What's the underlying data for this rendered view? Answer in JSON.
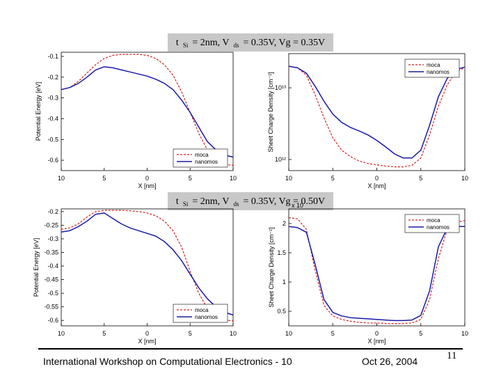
{
  "slide": {
    "captions": [
      {
        "t_sub": "Si",
        "v_sub": "ds",
        "prefix": "t",
        "mid": " = 2nm, V",
        "suffix": " = 0.35V, Vg = 0.35V"
      },
      {
        "t_sub": "Si",
        "v_sub": "ds",
        "prefix": "t",
        "mid": " = 2nm, V",
        "suffix": " = 0.35V, Vg = 0.50V"
      }
    ],
    "footer": {
      "event": "International Workshop on Computational Electronics - 10",
      "date": "Oct 26, 2004",
      "page": "11"
    }
  },
  "colors": {
    "moca": "#d42020",
    "nanomos": "#1a1aa8"
  },
  "chart_data": [
    {
      "type": "line",
      "xlabel": "X [nm]",
      "ylabel": "Potential Energy [eV]",
      "xlim": [
        -10,
        10
      ],
      "ylim": [
        -0.65,
        -0.08
      ],
      "xticks": [
        -10,
        -5,
        0,
        5,
        10
      ],
      "xtick_labels": [
        "10",
        "5",
        "0",
        "5",
        "10"
      ],
      "yticks": [
        -0.1,
        -0.2,
        -0.3,
        -0.4,
        -0.5,
        -0.6
      ],
      "ytick_labels": [
        "-0.1",
        "-0.2",
        "-0.3",
        "-0.4",
        "-0.5",
        "-0.6"
      ],
      "legend": {
        "position": "bottom-right",
        "entries": [
          "moca",
          "nanomos"
        ]
      },
      "series": [
        {
          "name": "moca",
          "style": "dashed",
          "x": [
            -10,
            -9,
            -8,
            -7,
            -6,
            -5,
            -4,
            -3,
            -2,
            -1,
            0,
            1,
            2,
            3,
            4,
            5,
            6,
            7,
            8,
            9,
            10
          ],
          "y": [
            -0.26,
            -0.25,
            -0.22,
            -0.18,
            -0.14,
            -0.11,
            -0.095,
            -0.09,
            -0.09,
            -0.09,
            -0.095,
            -0.11,
            -0.14,
            -0.19,
            -0.27,
            -0.37,
            -0.47,
            -0.55,
            -0.6,
            -0.62,
            -0.625
          ]
        },
        {
          "name": "nanomos",
          "style": "solid",
          "x": [
            -10,
            -9,
            -8,
            -7,
            -6,
            -5,
            -4,
            -3,
            -2,
            -1,
            0,
            1,
            2,
            3,
            4,
            5,
            6,
            7,
            8,
            9,
            10
          ],
          "y": [
            -0.26,
            -0.25,
            -0.23,
            -0.2,
            -0.165,
            -0.15,
            -0.155,
            -0.165,
            -0.175,
            -0.185,
            -0.195,
            -0.21,
            -0.23,
            -0.26,
            -0.31,
            -0.37,
            -0.44,
            -0.51,
            -0.55,
            -0.575,
            -0.585
          ]
        }
      ]
    },
    {
      "type": "line",
      "xlabel": "X [nm]",
      "ylabel": "Sheet Charge Density [cm⁻²]",
      "yscale": "log",
      "xlim": [
        -10,
        10
      ],
      "ylim": [
        700000000000.0,
        30000000000000.0
      ],
      "xticks": [
        -10,
        -5,
        0,
        5,
        10
      ],
      "xtick_labels": [
        "10",
        "5",
        "0",
        "5",
        "10"
      ],
      "yticks": [
        1000000000000.0,
        10000000000000.0
      ],
      "ytick_labels": [
        "10¹²",
        "10¹³"
      ],
      "legend": {
        "position": "top-right",
        "entries": [
          "moca",
          "nanomos"
        ]
      },
      "series": [
        {
          "name": "moca",
          "style": "dashed",
          "x": [
            -10,
            -9,
            -8,
            -7,
            -6,
            -5,
            -4,
            -3,
            -2,
            -1,
            0,
            1,
            2,
            3,
            4,
            5,
            6,
            7,
            8,
            9,
            10
          ],
          "y": [
            20000000000000.0,
            19000000000000.0,
            15000000000000.0,
            8000000000000.0,
            3800000000000.0,
            2000000000000.0,
            1350000000000.0,
            1100000000000.0,
            950000000000.0,
            880000000000.0,
            840000000000.0,
            810000000000.0,
            790000000000.0,
            790000000000.0,
            830000000000.0,
            1050000000000.0,
            2200000000000.0,
            5500000000000.0,
            11000000000000.0,
            17000000000000.0,
            19000000000000.0
          ]
        },
        {
          "name": "nanomos",
          "style": "solid",
          "x": [
            -10,
            -9,
            -8,
            -7,
            -6,
            -5,
            -4,
            -3,
            -2,
            -1,
            0,
            1,
            2,
            3,
            4,
            5,
            6,
            7,
            8,
            9,
            10
          ],
          "y": [
            20000000000000.0,
            19000000000000.0,
            16000000000000.0,
            10500000000000.0,
            6500000000000.0,
            4300000000000.0,
            3300000000000.0,
            2800000000000.0,
            2500000000000.0,
            2200000000000.0,
            1850000000000.0,
            1500000000000.0,
            1200000000000.0,
            1050000000000.0,
            1050000000000.0,
            1350000000000.0,
            3000000000000.0,
            7500000000000.0,
            13500000000000.0,
            18000000000000.0,
            19500000000000.0
          ]
        }
      ]
    },
    {
      "type": "line",
      "xlabel": "X [nm]",
      "ylabel": "Potential Energy [eV]",
      "xlim": [
        -10,
        10
      ],
      "ylim": [
        -0.62,
        -0.19
      ],
      "xticks": [
        -10,
        -5,
        0,
        5,
        10
      ],
      "xtick_labels": [
        "10",
        "5",
        "0",
        "5",
        "10"
      ],
      "yticks": [
        -0.2,
        -0.25,
        -0.3,
        -0.35,
        -0.4,
        -0.45,
        -0.5,
        -0.55,
        -0.6
      ],
      "ytick_labels": [
        "-0.2",
        "-0.25",
        "-0.3",
        "-0.35",
        "-0.4",
        "-0.45",
        "-0.5",
        "-0.55",
        "-0.6"
      ],
      "legend": {
        "position": "bottom-right",
        "entries": [
          "moca",
          "nanomos"
        ]
      },
      "series": [
        {
          "name": "moca",
          "style": "dashed",
          "x": [
            -10,
            -9,
            -8,
            -7,
            -6,
            -5,
            -4,
            -3,
            -2,
            -1,
            0,
            1,
            2,
            3,
            4,
            5,
            6,
            7,
            8,
            9,
            10
          ],
          "y": [
            -0.265,
            -0.26,
            -0.245,
            -0.22,
            -0.2,
            -0.195,
            -0.195,
            -0.195,
            -0.197,
            -0.2,
            -0.205,
            -0.215,
            -0.235,
            -0.27,
            -0.33,
            -0.42,
            -0.5,
            -0.555,
            -0.585,
            -0.598,
            -0.602
          ]
        },
        {
          "name": "nanomos",
          "style": "solid",
          "x": [
            -10,
            -9,
            -8,
            -7,
            -6,
            -5,
            -4,
            -3,
            -2,
            -1,
            0,
            1,
            2,
            3,
            4,
            5,
            6,
            7,
            8,
            9,
            10
          ],
          "y": [
            -0.275,
            -0.27,
            -0.255,
            -0.235,
            -0.21,
            -0.205,
            -0.225,
            -0.245,
            -0.26,
            -0.27,
            -0.28,
            -0.29,
            -0.31,
            -0.34,
            -0.38,
            -0.43,
            -0.48,
            -0.52,
            -0.55,
            -0.57,
            -0.58
          ]
        }
      ]
    },
    {
      "type": "line",
      "xlabel": "X [nm]",
      "ylabel": "Sheet Charge Density [cm⁻²]",
      "y_multiplier_label": "x 10",
      "xlim": [
        -10,
        10
      ],
      "ylim": [
        0.25,
        2.25
      ],
      "xticks": [
        -10,
        -5,
        0,
        5,
        10
      ],
      "xtick_labels": [
        "10",
        "5",
        "0",
        "5",
        "10"
      ],
      "yticks": [
        0.5,
        1,
        1.5,
        2
      ],
      "ytick_labels": [
        "0.5",
        "1",
        "1.5",
        "2"
      ],
      "legend": {
        "position": "top-right",
        "entries": [
          "moca",
          "nanomos"
        ]
      },
      "series": [
        {
          "name": "moca",
          "style": "dashed",
          "x": [
            -10,
            -9,
            -8,
            -7,
            -6,
            -5,
            -4,
            -3,
            -2,
            -1,
            0,
            1,
            2,
            3,
            4,
            5,
            6,
            7,
            8,
            9,
            10
          ],
          "y": [
            2.1,
            2.08,
            1.9,
            1.2,
            0.6,
            0.42,
            0.36,
            0.33,
            0.31,
            0.3,
            0.3,
            0.29,
            0.29,
            0.29,
            0.3,
            0.36,
            0.7,
            1.4,
            1.9,
            2.02,
            2.05
          ]
        },
        {
          "name": "nanomos",
          "style": "solid",
          "x": [
            -10,
            -9,
            -8,
            -7,
            -6,
            -5,
            -4,
            -3,
            -2,
            -1,
            0,
            1,
            2,
            3,
            4,
            5,
            6,
            7,
            8,
            9,
            10
          ],
          "y": [
            1.95,
            1.93,
            1.85,
            1.3,
            0.7,
            0.48,
            0.42,
            0.39,
            0.38,
            0.37,
            0.36,
            0.35,
            0.34,
            0.34,
            0.35,
            0.43,
            0.85,
            1.6,
            1.92,
            1.95,
            1.95
          ]
        }
      ]
    }
  ]
}
